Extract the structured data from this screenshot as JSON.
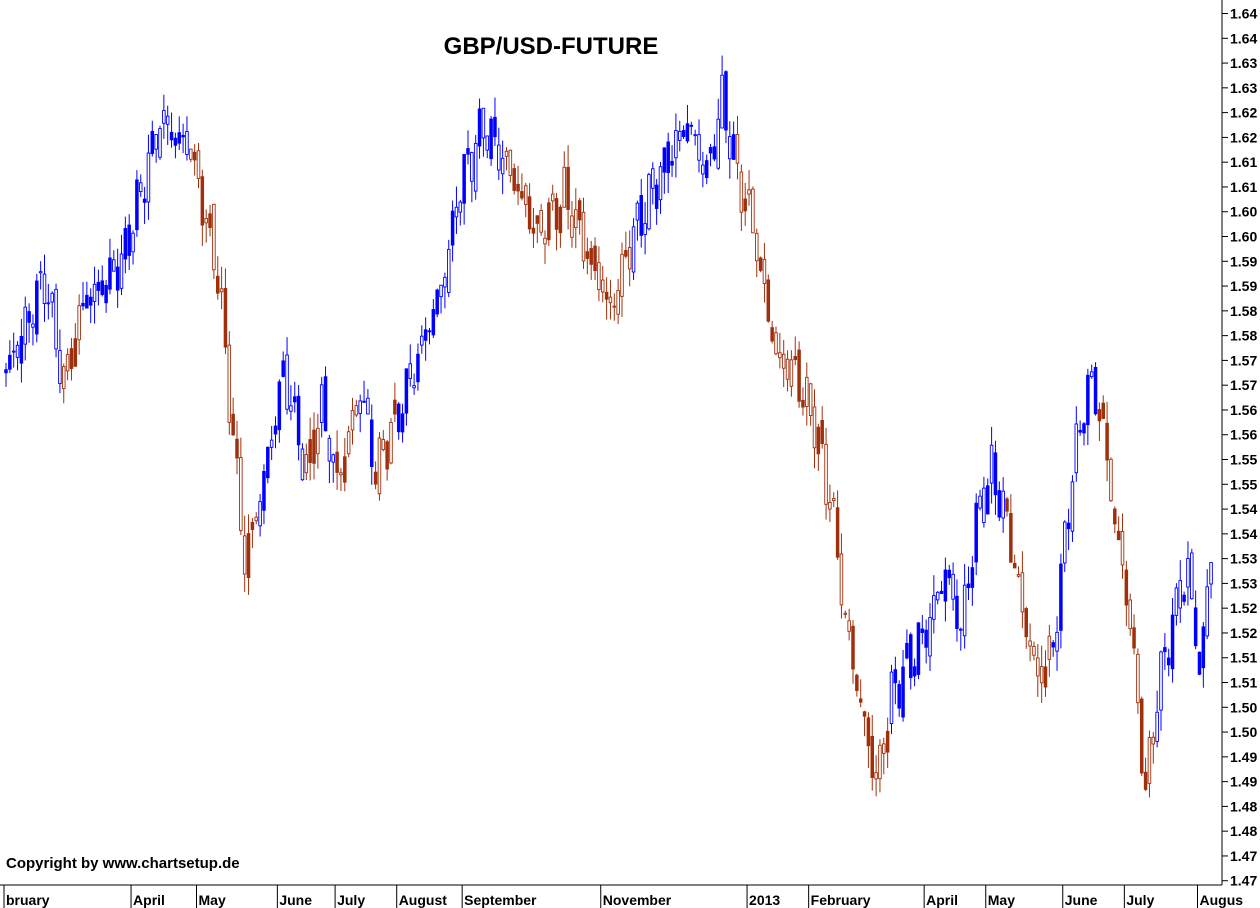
{
  "chart_data": {
    "type": "candlestick",
    "title": "GBP/USD-FUTURE",
    "copyright": "Copyright by www.chartsetup.de",
    "colors": {
      "up": "#0000FF",
      "down": "#A0300C",
      "axis": "#000000",
      "background": "#FFFFFF"
    },
    "grid": false,
    "yaxis": {
      "position": "right",
      "range": [
        1.4645,
        1.6445
      ],
      "tick_values": [
        1.4675,
        1.4725,
        1.4775,
        1.4825,
        1.4875,
        1.4925,
        1.4975,
        1.5025,
        1.5075,
        1.5125,
        1.5175,
        1.5225,
        1.5275,
        1.5325,
        1.5375,
        1.5425,
        1.5475,
        1.5525,
        1.5575,
        1.5625,
        1.5675,
        1.5725,
        1.5775,
        1.5825,
        1.5875,
        1.5925,
        1.5975,
        1.6025,
        1.6075,
        1.6125,
        1.6175,
        1.6225,
        1.6275,
        1.6325,
        1.6375,
        1.6425
      ],
      "tick_labels": [
        "1.47",
        "1.47",
        "1.48",
        "1.48",
        "1.49",
        "1.49",
        "1.50",
        "1.50",
        "1.51",
        "1.51",
        "1.52",
        "1.52",
        "1.53",
        "1.53",
        "1.54",
        "1.54",
        "1.55",
        "1.55",
        "1.56",
        "1.56",
        "1.57",
        "1.57",
        "1.58",
        "1.58",
        "1.59",
        "1.59",
        "1.60",
        "1.60",
        "1.61",
        "1.61",
        "1.62",
        "1.62",
        "1.63",
        "1.63",
        "1.64",
        "1.64"
      ]
    },
    "xaxis": {
      "months": [
        "bruary",
        "April",
        "May",
        "June",
        "July",
        "August",
        "September",
        "November",
        "2013",
        "February",
        "April",
        "May",
        "June",
        "July",
        "Augus"
      ],
      "month_start_index": [
        0,
        33,
        50,
        71,
        86,
        102,
        119,
        155,
        193,
        209,
        239,
        255,
        275,
        291,
        310
      ]
    },
    "anchors": [
      [
        0,
        1.57,
        1
      ],
      [
        10,
        1.589,
        1
      ],
      [
        15,
        1.568,
        0
      ],
      [
        20,
        1.584,
        1
      ],
      [
        30,
        1.592,
        1
      ],
      [
        40,
        1.621,
        1
      ],
      [
        48,
        1.615,
        0
      ],
      [
        55,
        1.59,
        0
      ],
      [
        62,
        1.532,
        0
      ],
      [
        66,
        1.545,
        1
      ],
      [
        72,
        1.57,
        1
      ],
      [
        78,
        1.55,
        0
      ],
      [
        82,
        1.563,
        1
      ],
      [
        86,
        1.548,
        0
      ],
      [
        92,
        1.567,
        1
      ],
      [
        96,
        1.55,
        0
      ],
      [
        102,
        1.562,
        1
      ],
      [
        108,
        1.575,
        1
      ],
      [
        114,
        1.59,
        1
      ],
      [
        118,
        1.608,
        1
      ],
      [
        124,
        1.62,
        1
      ],
      [
        130,
        1.612,
        0
      ],
      [
        138,
        1.598,
        0
      ],
      [
        145,
        1.606,
        0
      ],
      [
        150,
        1.596,
        0
      ],
      [
        157,
        1.583,
        0
      ],
      [
        163,
        1.598,
        1
      ],
      [
        170,
        1.61,
        1
      ],
      [
        177,
        1.621,
        1
      ],
      [
        182,
        1.61,
        1
      ],
      [
        186,
        1.625,
        1
      ],
      [
        190,
        1.61,
        0
      ],
      [
        194,
        1.6,
        0
      ],
      [
        200,
        1.573,
        0
      ],
      [
        205,
        1.57,
        0
      ],
      [
        210,
        1.56,
        0
      ],
      [
        215,
        1.54,
        0
      ],
      [
        218,
        1.52,
        0
      ],
      [
        222,
        1.503,
        0
      ],
      [
        226,
        1.487,
        0
      ],
      [
        230,
        1.505,
        1
      ],
      [
        235,
        1.512,
        1
      ],
      [
        240,
        1.52,
        1
      ],
      [
        244,
        1.53,
        1
      ],
      [
        248,
        1.518,
        1
      ],
      [
        252,
        1.54,
        1
      ],
      [
        256,
        1.55,
        1
      ],
      [
        260,
        1.54,
        0
      ],
      [
        264,
        1.522,
        0
      ],
      [
        268,
        1.508,
        0
      ],
      [
        272,
        1.515,
        1
      ],
      [
        277,
        1.55,
        1
      ],
      [
        281,
        1.567,
        1
      ],
      [
        284,
        1.564,
        0
      ],
      [
        288,
        1.54,
        0
      ],
      [
        292,
        1.52,
        0
      ],
      [
        296,
        1.485,
        0
      ],
      [
        299,
        1.505,
        1
      ],
      [
        303,
        1.52,
        1
      ],
      [
        307,
        1.53,
        1
      ],
      [
        310,
        1.51,
        1
      ],
      [
        313,
        1.533,
        1
      ]
    ]
  }
}
